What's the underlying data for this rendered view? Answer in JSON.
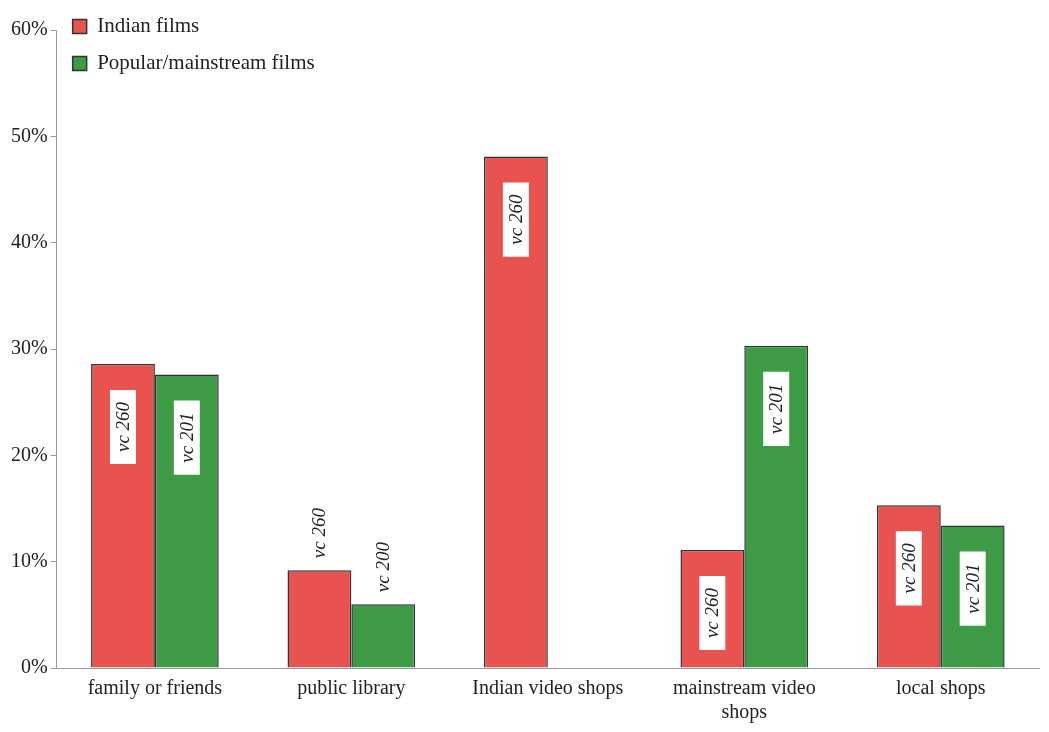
{
  "chart_data": {
    "type": "bar",
    "categories": [
      "family or friends",
      "public library",
      "Indian video shops",
      "mainstream video shops",
      "local shops"
    ],
    "series": [
      {
        "name": "Indian films",
        "color": "#e8524f",
        "values": [
          28.6,
          9.2,
          48.1,
          11.1,
          15.3
        ],
        "value_labels": [
          "vc 260",
          "vc 260",
          "vc 260",
          "vc 260",
          "vc 260"
        ]
      },
      {
        "name": "Popular/mainstream films",
        "color": "#3d9a45",
        "values": [
          27.6,
          6.0,
          null,
          30.3,
          13.4
        ],
        "value_labels": [
          "vc 201",
          "vc 200",
          null,
          "vc 201",
          "vc 201"
        ]
      }
    ],
    "ylim": [
      0,
      60
    ],
    "yticks": [
      {
        "value": 0,
        "label": "0%"
      },
      {
        "value": 10,
        "label": "10%"
      },
      {
        "value": 20,
        "label": "20%"
      },
      {
        "value": 30,
        "label": "30%"
      },
      {
        "value": 40,
        "label": "40%"
      },
      {
        "value": 50,
        "label": "50%"
      },
      {
        "value": 60,
        "label": "60%"
      }
    ],
    "grid": false,
    "legend": "top left"
  }
}
